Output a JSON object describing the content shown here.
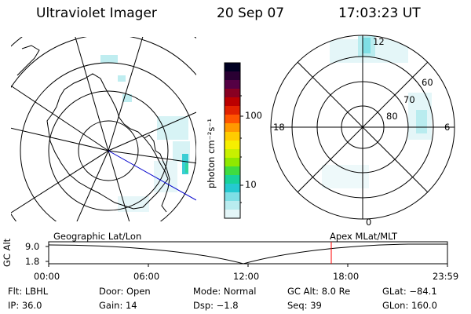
{
  "header": {
    "instrument": "Ultraviolet Imager",
    "date": "20 Sep 07",
    "time": "17:03:23 UT"
  },
  "colorbar": {
    "unit_label": "photon cm⁻²s⁻¹",
    "tick_labels": [
      "100",
      "10"
    ],
    "colors": [
      "#000022",
      "#2a0033",
      "#550044",
      "#880022",
      "#bb0000",
      "#e22200",
      "#ff5500",
      "#ff9900",
      "#ffcc00",
      "#f6ef00",
      "#c8f000",
      "#8fe800",
      "#3fdc40",
      "#18d29a",
      "#25c9d0",
      "#7fdfe5",
      "#b9ecef",
      "#e4f6f8"
    ]
  },
  "geographic_map": {
    "label": "Geographic Lat/Lon"
  },
  "magnetic_map": {
    "label": "Apex  MLat/MLT",
    "mlt_labels": {
      "top": "12",
      "left": "18",
      "right": "6",
      "bottom": "0"
    },
    "mlat_labels": [
      "60",
      "70",
      "80"
    ]
  },
  "gc_alt_plot": {
    "ylabel": "GC Alt",
    "y_ticks": [
      "9.0",
      "1.8"
    ],
    "x_ticks": [
      "00:00",
      "06:00",
      "12:00",
      "18:00",
      "23:59"
    ],
    "current_time_marker": "17:03",
    "marker_color": "#ff0000"
  },
  "footer": {
    "filter": "Flt: LBHL",
    "door": "Door: Open",
    "mode": "Mode: Normal",
    "gc_alt": "GC Alt: 8.0 Re",
    "glat": "GLat: −84.1",
    "ip": "IP: 36.0",
    "gain": "Gain: 14",
    "dsp": "Dsp:    −1.8",
    "seq": "Seq: 39",
    "glon": "GLon: 160.0"
  }
}
